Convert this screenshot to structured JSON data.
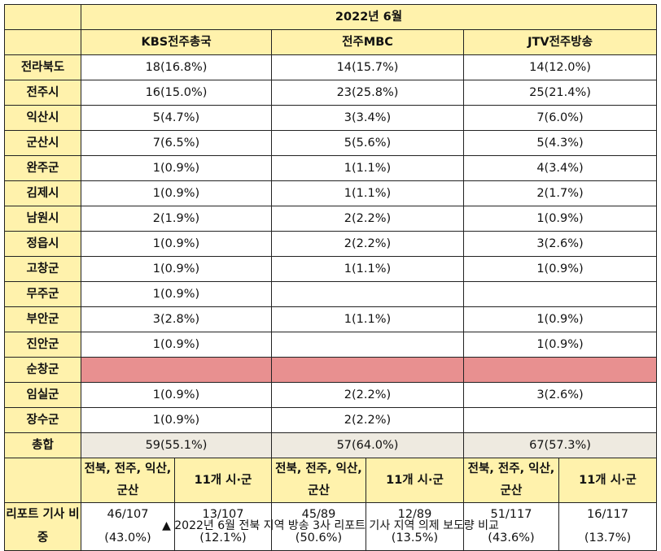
{
  "header": {
    "period": "2022년 6월",
    "broadcasters": [
      "KBS전주총국",
      "전주MBC",
      "JTV전주방송"
    ]
  },
  "rows": [
    {
      "region": "전라북도",
      "cells": [
        "18(16.8%)",
        "14(15.7%)",
        "14(12.0%)"
      ]
    },
    {
      "region": "전주시",
      "cells": [
        "16(15.0%)",
        "23(25.8%)",
        "25(21.4%)"
      ]
    },
    {
      "region": "익산시",
      "cells": [
        "5(4.7%)",
        "3(3.4%)",
        "7(6.0%)"
      ]
    },
    {
      "region": "군산시",
      "cells": [
        "7(6.5%)",
        "5(5.6%)",
        "5(4.3%)"
      ]
    },
    {
      "region": "완주군",
      "cells": [
        "1(0.9%)",
        "1(1.1%)",
        "4(3.4%)"
      ]
    },
    {
      "region": "김제시",
      "cells": [
        "1(0.9%)",
        "1(1.1%)",
        "2(1.7%)"
      ]
    },
    {
      "region": "남원시",
      "cells": [
        "2(1.9%)",
        "2(2.2%)",
        "1(0.9%)"
      ]
    },
    {
      "region": "정읍시",
      "cells": [
        "1(0.9%)",
        "2(2.2%)",
        "3(2.6%)"
      ]
    },
    {
      "region": "고창군",
      "cells": [
        "1(0.9%)",
        "1(1.1%)",
        "1(0.9%)"
      ]
    },
    {
      "region": "무주군",
      "cells": [
        "1(0.9%)",
        "",
        ""
      ]
    },
    {
      "region": "부안군",
      "cells": [
        "3(2.8%)",
        "1(1.1%)",
        "1(0.9%)"
      ]
    },
    {
      "region": "진안군",
      "cells": [
        "1(0.9%)",
        "",
        "1(0.9%)"
      ]
    },
    {
      "region": "순창군",
      "cells": [
        "",
        "",
        ""
      ],
      "highlight": true
    },
    {
      "region": "임실군",
      "cells": [
        "1(0.9%)",
        "2(2.2%)",
        "3(2.6%)"
      ]
    },
    {
      "region": "장수군",
      "cells": [
        "1(0.9%)",
        "2(2.2%)",
        ""
      ]
    },
    {
      "region": "총합",
      "cells": [
        "59(55.1%)",
        "57(64.0%)",
        "67(57.3%)"
      ],
      "total": true
    }
  ],
  "subheader": {
    "group_a": "전북, 전주, 익산, 군산",
    "group_b": "11개 시·군"
  },
  "report": {
    "label": "리포트 기사 비중",
    "values": [
      {
        "count": "46/107",
        "pct": "(43.0%)"
      },
      {
        "count": "13/107",
        "pct": "(12.1%)"
      },
      {
        "count": "45/89",
        "pct": "(50.6%)"
      },
      {
        "count": "12/89",
        "pct": "(13.5%)"
      },
      {
        "count": "51/117",
        "pct": "(43.6%)"
      },
      {
        "count": "16/117",
        "pct": "(13.7%)"
      }
    ]
  },
  "caption": "▲ 2022년 6월 전북 지역 방송 3사 리포트 기사 지역 의제 보도량 비교",
  "colors": {
    "header_bg": "#FFF2AC",
    "highlight_bg": "#E89090",
    "total_bg": "#EEEAE0"
  }
}
